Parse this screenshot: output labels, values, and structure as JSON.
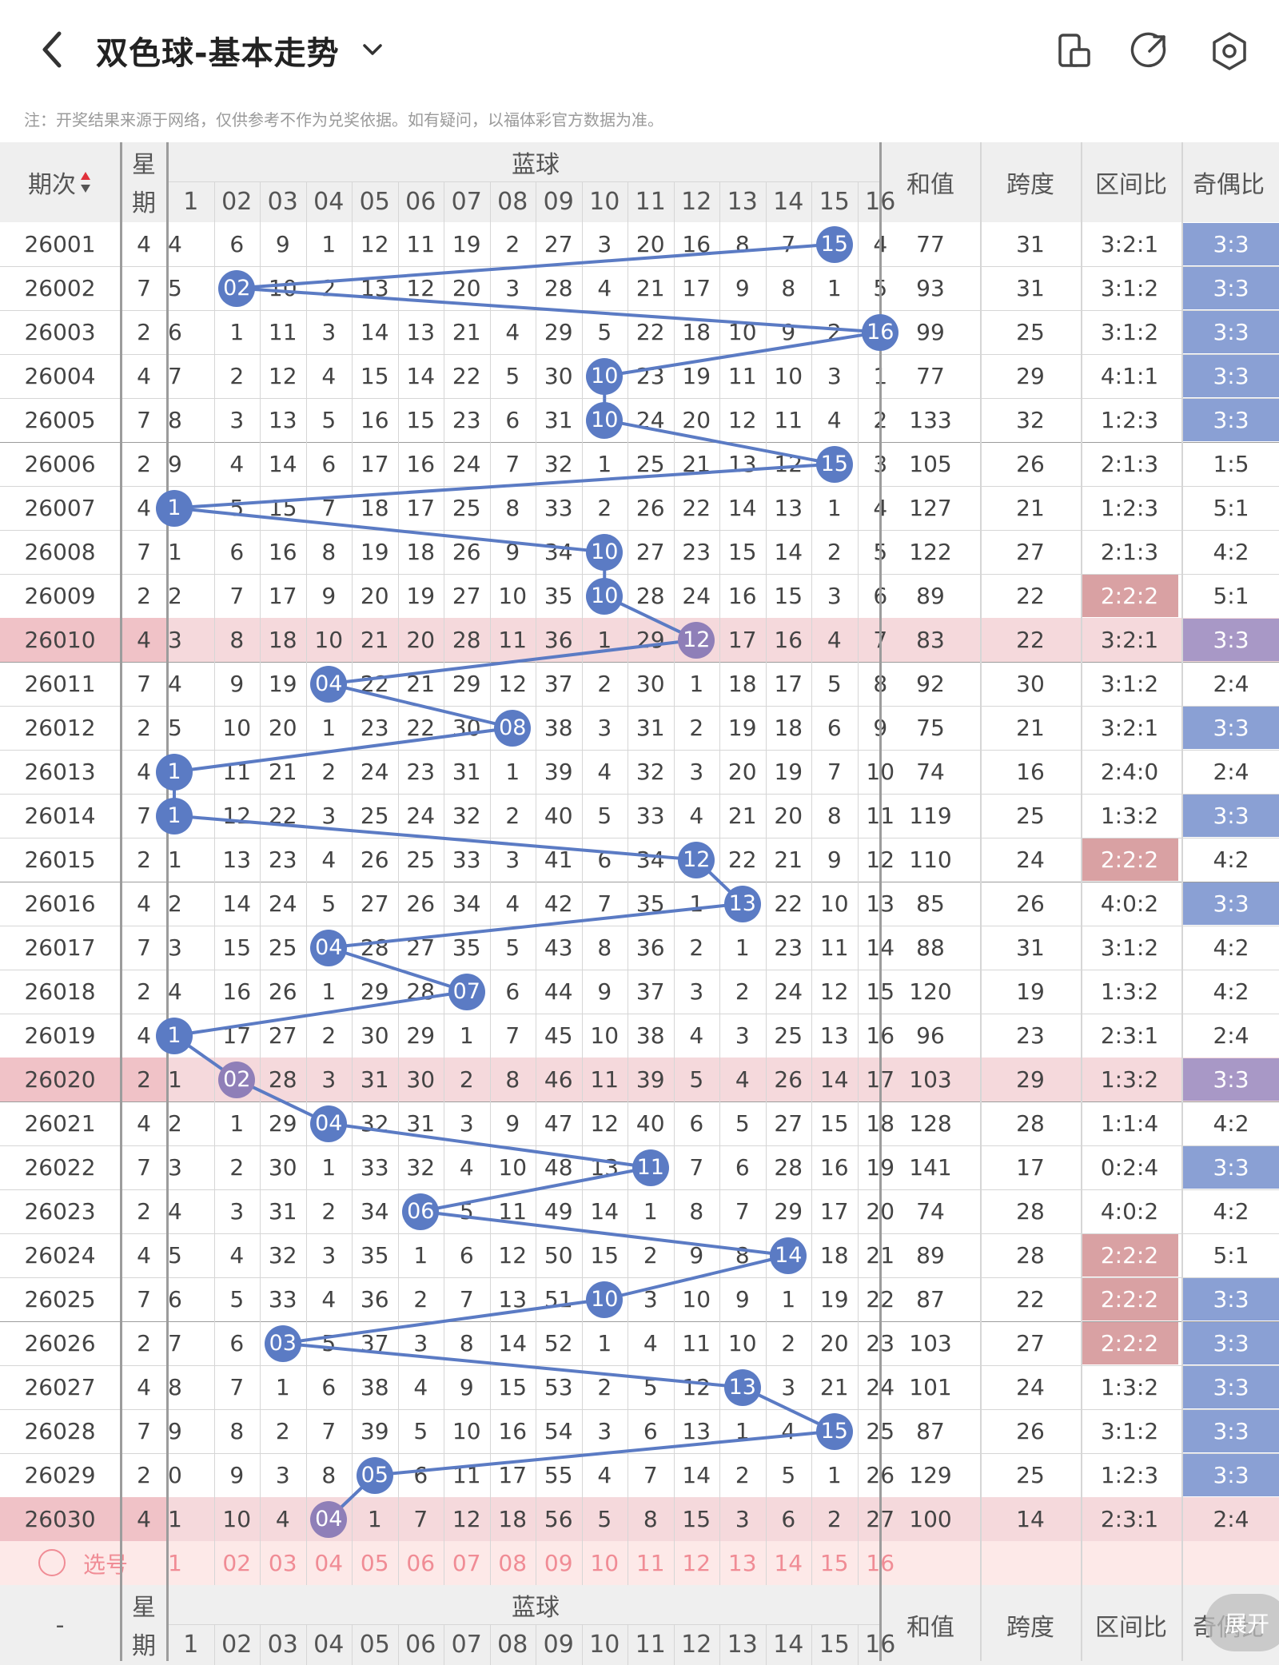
{
  "header": {
    "title": "双色球-基本走势",
    "back_icon": "chevron-left-icon",
    "dropdown_icon": "chevron-down-icon",
    "icons": [
      "phone-layout-icon",
      "share-icon",
      "settings-hexagon-icon"
    ]
  },
  "note": "注：开奖结果来源于网络，仅供参考不作为兑奖依据。如有疑问，以福体彩官方数据为准。",
  "table": {
    "col_period": "期次",
    "sort_icon": "sort-up-down-icon",
    "col_week_top": "星",
    "col_week_bottom": "期",
    "blue_group": "蓝球",
    "blue_numbers": [
      "1",
      "02",
      "03",
      "04",
      "05",
      "06",
      "07",
      "08",
      "09",
      "10",
      "11",
      "12",
      "13",
      "14",
      "15",
      "16"
    ],
    "col_sum": "和值",
    "col_span": "跨度",
    "col_zone": "区间比",
    "col_oddeven": "奇偶比",
    "rows": [
      {
        "period": "26001",
        "week": "4",
        "cells": [
          "4",
          "6",
          "9",
          "1",
          "12",
          "11",
          "19",
          "2",
          "27",
          "3",
          "20",
          "16",
          "8",
          "7",
          "15",
          "4"
        ],
        "blue": 15,
        "sum": "77",
        "span": "31",
        "zone": "3:2:1",
        "oe": "3:3"
      },
      {
        "period": "26002",
        "week": "7",
        "cells": [
          "5",
          "02",
          "10",
          "2",
          "13",
          "12",
          "20",
          "3",
          "28",
          "4",
          "21",
          "17",
          "9",
          "8",
          "1",
          "5"
        ],
        "blue": 2,
        "sum": "93",
        "span": "31",
        "zone": "3:1:2",
        "oe": "3:3"
      },
      {
        "period": "26003",
        "week": "2",
        "cells": [
          "6",
          "1",
          "11",
          "3",
          "14",
          "13",
          "21",
          "4",
          "29",
          "5",
          "22",
          "18",
          "10",
          "9",
          "2",
          "16"
        ],
        "blue": 16,
        "sum": "99",
        "span": "25",
        "zone": "3:1:2",
        "oe": "3:3"
      },
      {
        "period": "26004",
        "week": "4",
        "cells": [
          "7",
          "2",
          "12",
          "4",
          "15",
          "14",
          "22",
          "5",
          "30",
          "10",
          "23",
          "19",
          "11",
          "10",
          "3",
          "1"
        ],
        "blue": 10,
        "sum": "77",
        "span": "29",
        "zone": "4:1:1",
        "oe": "3:3"
      },
      {
        "period": "26005",
        "week": "7",
        "cells": [
          "8",
          "3",
          "13",
          "5",
          "16",
          "15",
          "23",
          "6",
          "31",
          "10",
          "24",
          "20",
          "12",
          "11",
          "4",
          "2"
        ],
        "blue": 10,
        "sum": "133",
        "span": "32",
        "zone": "1:2:3",
        "oe": "3:3"
      },
      {
        "period": "26006",
        "week": "2",
        "cells": [
          "9",
          "4",
          "14",
          "6",
          "17",
          "16",
          "24",
          "7",
          "32",
          "1",
          "25",
          "21",
          "13",
          "12",
          "15",
          "3"
        ],
        "blue": 15,
        "sum": "105",
        "span": "26",
        "zone": "2:1:3",
        "oe": "1:5"
      },
      {
        "period": "26007",
        "week": "4",
        "cells": [
          "1",
          "5",
          "15",
          "7",
          "18",
          "17",
          "25",
          "8",
          "33",
          "2",
          "26",
          "22",
          "14",
          "13",
          "1",
          "4"
        ],
        "blue": 1,
        "sum": "127",
        "span": "21",
        "zone": "1:2:3",
        "oe": "5:1"
      },
      {
        "period": "26008",
        "week": "7",
        "cells": [
          "1",
          "6",
          "16",
          "8",
          "19",
          "18",
          "26",
          "9",
          "34",
          "10",
          "27",
          "23",
          "15",
          "14",
          "2",
          "5"
        ],
        "blue": 10,
        "sum": "122",
        "span": "27",
        "zone": "2:1:3",
        "oe": "4:2"
      },
      {
        "period": "26009",
        "week": "2",
        "cells": [
          "2",
          "7",
          "17",
          "9",
          "20",
          "19",
          "27",
          "10",
          "35",
          "10",
          "28",
          "24",
          "16",
          "15",
          "3",
          "6"
        ],
        "blue": 10,
        "sum": "89",
        "span": "22",
        "zone": "2:2:2",
        "oe": "5:1"
      },
      {
        "period": "26010",
        "week": "4",
        "cells": [
          "3",
          "8",
          "18",
          "10",
          "21",
          "20",
          "28",
          "11",
          "36",
          "1",
          "29",
          "12",
          "17",
          "16",
          "4",
          "7"
        ],
        "blue": 12,
        "sum": "83",
        "span": "22",
        "zone": "3:2:1",
        "oe": "3:3"
      },
      {
        "period": "26011",
        "week": "7",
        "cells": [
          "4",
          "9",
          "19",
          "04",
          "22",
          "21",
          "29",
          "12",
          "37",
          "2",
          "30",
          "1",
          "18",
          "17",
          "5",
          "8"
        ],
        "blue": 4,
        "sum": "92",
        "span": "30",
        "zone": "3:1:2",
        "oe": "2:4"
      },
      {
        "period": "26012",
        "week": "2",
        "cells": [
          "5",
          "10",
          "20",
          "1",
          "23",
          "22",
          "30",
          "08",
          "38",
          "3",
          "31",
          "2",
          "19",
          "18",
          "6",
          "9"
        ],
        "blue": 8,
        "sum": "75",
        "span": "21",
        "zone": "3:2:1",
        "oe": "3:3"
      },
      {
        "period": "26013",
        "week": "4",
        "cells": [
          "1",
          "11",
          "21",
          "2",
          "24",
          "23",
          "31",
          "1",
          "39",
          "4",
          "32",
          "3",
          "20",
          "19",
          "7",
          "10"
        ],
        "blue": 1,
        "sum": "74",
        "span": "16",
        "zone": "2:4:0",
        "oe": "2:4"
      },
      {
        "period": "26014",
        "week": "7",
        "cells": [
          "1",
          "12",
          "22",
          "3",
          "25",
          "24",
          "32",
          "2",
          "40",
          "5",
          "33",
          "4",
          "21",
          "20",
          "8",
          "11"
        ],
        "blue": 1,
        "sum": "119",
        "span": "25",
        "zone": "1:3:2",
        "oe": "3:3"
      },
      {
        "period": "26015",
        "week": "2",
        "cells": [
          "1",
          "13",
          "23",
          "4",
          "26",
          "25",
          "33",
          "3",
          "41",
          "6",
          "34",
          "12",
          "22",
          "21",
          "9",
          "12"
        ],
        "blue": 12,
        "sum": "110",
        "span": "24",
        "zone": "2:2:2",
        "oe": "4:2"
      },
      {
        "period": "26016",
        "week": "4",
        "cells": [
          "2",
          "14",
          "24",
          "5",
          "27",
          "26",
          "34",
          "4",
          "42",
          "7",
          "35",
          "1",
          "13",
          "22",
          "10",
          "13"
        ],
        "blue": 13,
        "sum": "85",
        "span": "26",
        "zone": "4:0:2",
        "oe": "3:3"
      },
      {
        "period": "26017",
        "week": "7",
        "cells": [
          "3",
          "15",
          "25",
          "04",
          "28",
          "27",
          "35",
          "5",
          "43",
          "8",
          "36",
          "2",
          "1",
          "23",
          "11",
          "14"
        ],
        "blue": 4,
        "sum": "88",
        "span": "31",
        "zone": "3:1:2",
        "oe": "4:2"
      },
      {
        "period": "26018",
        "week": "2",
        "cells": [
          "4",
          "16",
          "26",
          "1",
          "29",
          "28",
          "07",
          "6",
          "44",
          "9",
          "37",
          "3",
          "2",
          "24",
          "12",
          "15"
        ],
        "blue": 7,
        "sum": "120",
        "span": "19",
        "zone": "1:3:2",
        "oe": "4:2"
      },
      {
        "period": "26019",
        "week": "4",
        "cells": [
          "1",
          "17",
          "27",
          "2",
          "30",
          "29",
          "1",
          "7",
          "45",
          "10",
          "38",
          "4",
          "3",
          "25",
          "13",
          "16"
        ],
        "blue": 1,
        "sum": "96",
        "span": "23",
        "zone": "2:3:1",
        "oe": "2:4"
      },
      {
        "period": "26020",
        "week": "2",
        "cells": [
          "1",
          "02",
          "28",
          "3",
          "31",
          "30",
          "2",
          "8",
          "46",
          "11",
          "39",
          "5",
          "4",
          "26",
          "14",
          "17"
        ],
        "blue": 2,
        "sum": "103",
        "span": "29",
        "zone": "1:3:2",
        "oe": "3:3"
      },
      {
        "period": "26021",
        "week": "4",
        "cells": [
          "2",
          "1",
          "29",
          "04",
          "32",
          "31",
          "3",
          "9",
          "47",
          "12",
          "40",
          "6",
          "5",
          "27",
          "15",
          "18"
        ],
        "blue": 4,
        "sum": "128",
        "span": "28",
        "zone": "1:1:4",
        "oe": "4:2"
      },
      {
        "period": "26022",
        "week": "7",
        "cells": [
          "3",
          "2",
          "30",
          "1",
          "33",
          "32",
          "4",
          "10",
          "48",
          "13",
          "11",
          "7",
          "6",
          "28",
          "16",
          "19"
        ],
        "blue": 11,
        "sum": "141",
        "span": "17",
        "zone": "0:2:4",
        "oe": "3:3"
      },
      {
        "period": "26023",
        "week": "2",
        "cells": [
          "4",
          "3",
          "31",
          "2",
          "34",
          "06",
          "5",
          "11",
          "49",
          "14",
          "1",
          "8",
          "7",
          "29",
          "17",
          "20"
        ],
        "blue": 6,
        "sum": "74",
        "span": "28",
        "zone": "4:0:2",
        "oe": "4:2"
      },
      {
        "period": "26024",
        "week": "4",
        "cells": [
          "5",
          "4",
          "32",
          "3",
          "35",
          "1",
          "6",
          "12",
          "50",
          "15",
          "2",
          "9",
          "8",
          "14",
          "18",
          "21"
        ],
        "blue": 14,
        "sum": "89",
        "span": "28",
        "zone": "2:2:2",
        "oe": "5:1"
      },
      {
        "period": "26025",
        "week": "7",
        "cells": [
          "6",
          "5",
          "33",
          "4",
          "36",
          "2",
          "7",
          "13",
          "51",
          "10",
          "3",
          "10",
          "9",
          "1",
          "19",
          "22"
        ],
        "blue": 10,
        "sum": "87",
        "span": "22",
        "zone": "2:2:2",
        "oe": "3:3"
      },
      {
        "period": "26026",
        "week": "2",
        "cells": [
          "7",
          "6",
          "03",
          "5",
          "37",
          "3",
          "8",
          "14",
          "52",
          "1",
          "4",
          "11",
          "10",
          "2",
          "20",
          "23"
        ],
        "blue": 3,
        "sum": "103",
        "span": "27",
        "zone": "2:2:2",
        "oe": "3:3"
      },
      {
        "period": "26027",
        "week": "4",
        "cells": [
          "8",
          "7",
          "1",
          "6",
          "38",
          "4",
          "9",
          "15",
          "53",
          "2",
          "5",
          "12",
          "13",
          "3",
          "21",
          "24"
        ],
        "blue": 13,
        "sum": "101",
        "span": "24",
        "zone": "1:3:2",
        "oe": "3:3"
      },
      {
        "period": "26028",
        "week": "7",
        "cells": [
          "9",
          "8",
          "2",
          "7",
          "39",
          "5",
          "10",
          "16",
          "54",
          "3",
          "6",
          "13",
          "1",
          "4",
          "15",
          "25"
        ],
        "blue": 15,
        "sum": "87",
        "span": "26",
        "zone": "3:1:2",
        "oe": "3:3"
      },
      {
        "period": "26029",
        "week": "2",
        "cells": [
          "0",
          "9",
          "3",
          "8",
          "05",
          "6",
          "11",
          "17",
          "55",
          "4",
          "7",
          "14",
          "2",
          "5",
          "1",
          "26"
        ],
        "blue": 5,
        "sum": "129",
        "span": "25",
        "zone": "1:2:3",
        "oe": "3:3"
      },
      {
        "period": "26030",
        "week": "4",
        "cells": [
          "1",
          "10",
          "4",
          "04",
          "1",
          "7",
          "12",
          "18",
          "56",
          "5",
          "8",
          "15",
          "3",
          "6",
          "2",
          "27"
        ],
        "blue": 4,
        "sum": "100",
        "span": "14",
        "zone": "2:3:1",
        "oe": "2:4"
      }
    ],
    "highlight_rows": [
      "26010",
      "26020",
      "26030"
    ],
    "select_label": "选号",
    "select_icon": "radio-circle-icon",
    "footer_period": "-",
    "expand_label": "展开",
    "colors": {
      "ball_blue": "#5b7bc4",
      "ball_purple": "#8f7fb8",
      "line": "#5b7bc4",
      "row_pink": "#f5d9dc",
      "period_pink": "#f0c2c7",
      "zone_red": "#d9a1a3",
      "oe_blue": "#8aa0d4",
      "oe_purple": "#a898c6",
      "select_pink": "#fde9e8",
      "select_text": "#f08c95"
    }
  }
}
